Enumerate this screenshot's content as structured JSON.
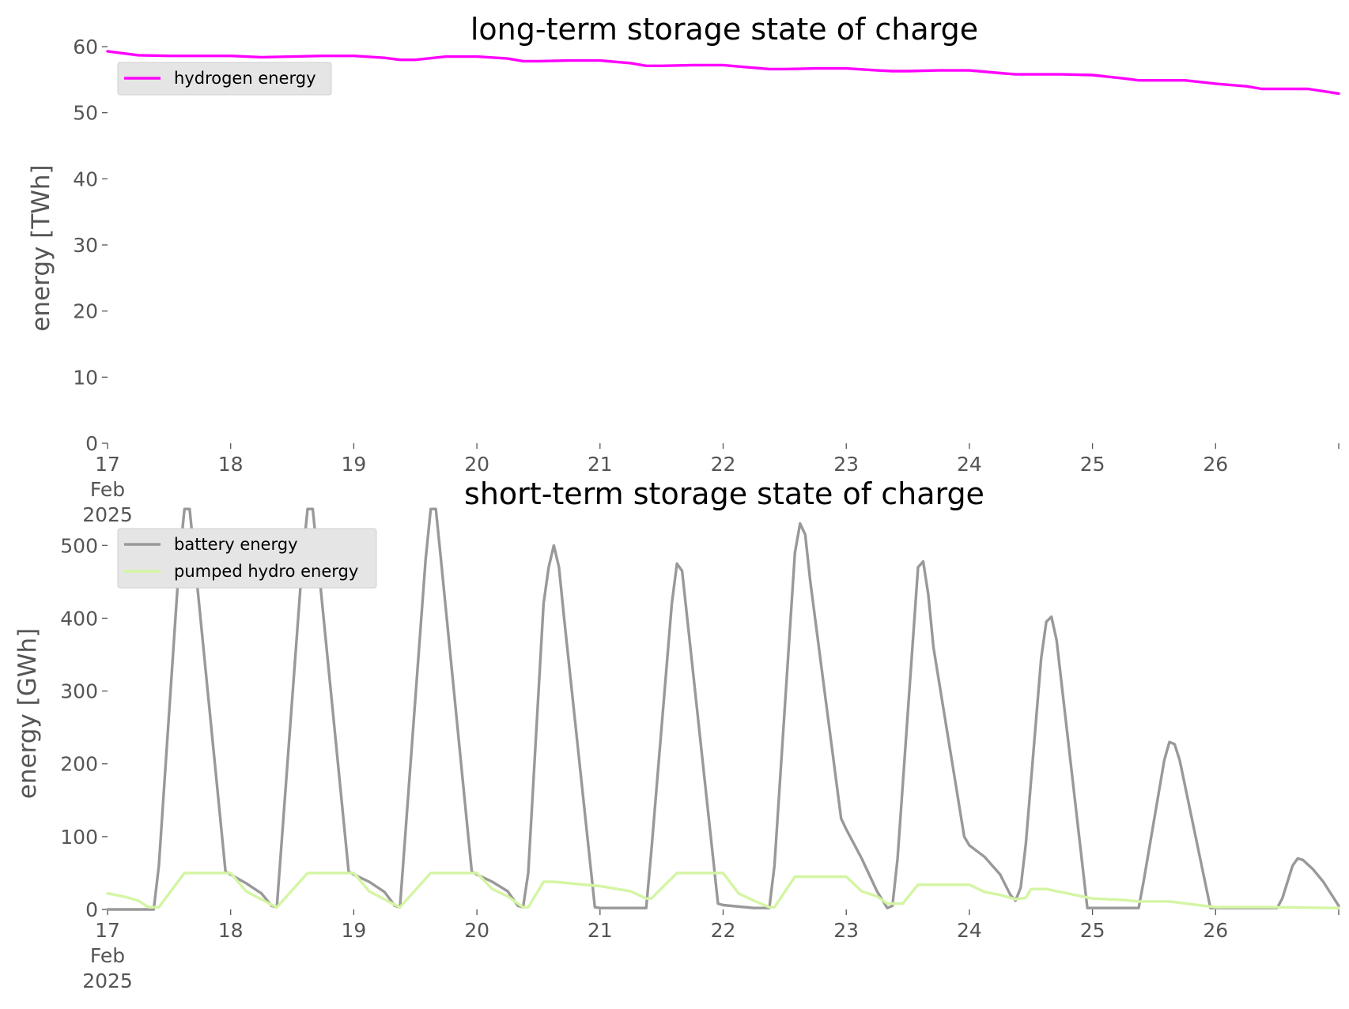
{
  "chart_data": [
    {
      "type": "line",
      "title": "long-term storage state of charge",
      "xlabel": "",
      "ylabel": "energy [TWh]",
      "x_tick_labels": [
        "17\nFeb\n2025",
        "18",
        "19",
        "20",
        "21",
        "22",
        "23",
        "24",
        "25",
        "26"
      ],
      "x_ticks": [
        "2025-02-17",
        "2025-02-18",
        "2025-02-19",
        "2025-02-20",
        "2025-02-21",
        "2025-02-22",
        "2025-02-23",
        "2025-02-24",
        "2025-02-25",
        "2025-02-26",
        "2025-02-27"
      ],
      "xlim": [
        "2025-02-17",
        "2025-02-27"
      ],
      "ylim": [
        0,
        60
      ],
      "y_ticks": [
        0,
        10,
        20,
        30,
        40,
        50,
        60
      ],
      "grid": false,
      "legend_position": "top-left",
      "series": [
        {
          "name": "hydrogen energy",
          "color": "#ff00ff",
          "points": [
            [
              "2025-02-17 00:00",
              59.3
            ],
            [
              "2025-02-17 06:00",
              58.7
            ],
            [
              "2025-02-17 12:00",
              58.6
            ],
            [
              "2025-02-17 18:00",
              58.6
            ],
            [
              "2025-02-18 00:00",
              58.6
            ],
            [
              "2025-02-18 06:00",
              58.4
            ],
            [
              "2025-02-18 12:00",
              58.5
            ],
            [
              "2025-02-18 18:00",
              58.6
            ],
            [
              "2025-02-19 00:00",
              58.6
            ],
            [
              "2025-02-19 06:00",
              58.3
            ],
            [
              "2025-02-19 09:00",
              58.0
            ],
            [
              "2025-02-19 12:00",
              58.0
            ],
            [
              "2025-02-19 18:00",
              58.5
            ],
            [
              "2025-02-20 00:00",
              58.5
            ],
            [
              "2025-02-20 06:00",
              58.2
            ],
            [
              "2025-02-20 09:00",
              57.8
            ],
            [
              "2025-02-20 12:00",
              57.8
            ],
            [
              "2025-02-20 18:00",
              57.9
            ],
            [
              "2025-02-21 00:00",
              57.9
            ],
            [
              "2025-02-21 06:00",
              57.5
            ],
            [
              "2025-02-21 09:00",
              57.1
            ],
            [
              "2025-02-21 12:00",
              57.1
            ],
            [
              "2025-02-21 18:00",
              57.2
            ],
            [
              "2025-02-22 00:00",
              57.2
            ],
            [
              "2025-02-22 06:00",
              56.8
            ],
            [
              "2025-02-22 09:00",
              56.6
            ],
            [
              "2025-02-22 12:00",
              56.6
            ],
            [
              "2025-02-22 18:00",
              56.7
            ],
            [
              "2025-02-23 00:00",
              56.7
            ],
            [
              "2025-02-23 06:00",
              56.4
            ],
            [
              "2025-02-23 09:00",
              56.3
            ],
            [
              "2025-02-23 12:00",
              56.3
            ],
            [
              "2025-02-23 18:00",
              56.4
            ],
            [
              "2025-02-24 00:00",
              56.4
            ],
            [
              "2025-02-24 06:00",
              56.0
            ],
            [
              "2025-02-24 09:00",
              55.8
            ],
            [
              "2025-02-24 12:00",
              55.8
            ],
            [
              "2025-02-24 18:00",
              55.8
            ],
            [
              "2025-02-25 00:00",
              55.7
            ],
            [
              "2025-02-25 06:00",
              55.2
            ],
            [
              "2025-02-25 09:00",
              54.9
            ],
            [
              "2025-02-25 12:00",
              54.9
            ],
            [
              "2025-02-25 18:00",
              54.9
            ],
            [
              "2025-02-26 00:00",
              54.4
            ],
            [
              "2025-02-26 06:00",
              54.0
            ],
            [
              "2025-02-26 09:00",
              53.6
            ],
            [
              "2025-02-26 12:00",
              53.6
            ],
            [
              "2025-02-26 18:00",
              53.6
            ],
            [
              "2025-02-27 00:00",
              52.9
            ]
          ]
        }
      ]
    },
    {
      "type": "line",
      "title": "short-term storage state of charge",
      "xlabel": "",
      "ylabel": "energy [GWh]",
      "x_tick_labels": [
        "17\nFeb\n2025",
        "18",
        "19",
        "20",
        "21",
        "22",
        "23",
        "24",
        "25",
        "26"
      ],
      "x_ticks": [
        "2025-02-17",
        "2025-02-18",
        "2025-02-19",
        "2025-02-20",
        "2025-02-21",
        "2025-02-22",
        "2025-02-23",
        "2025-02-24",
        "2025-02-25",
        "2025-02-26",
        "2025-02-27"
      ],
      "xlim": [
        "2025-02-17",
        "2025-02-27"
      ],
      "ylim": [
        0,
        560
      ],
      "y_ticks": [
        0,
        100,
        200,
        300,
        400,
        500
      ],
      "grid": false,
      "legend_position": "top-left",
      "series": [
        {
          "name": "battery energy",
          "color": "#999999",
          "points": [
            [
              "2025-02-17 00:00",
              0
            ],
            [
              "2025-02-17 09:00",
              0
            ],
            [
              "2025-02-17 10:00",
              60
            ],
            [
              "2025-02-17 14:00",
              480
            ],
            [
              "2025-02-17 15:00",
              550
            ],
            [
              "2025-02-17 16:00",
              550
            ],
            [
              "2025-02-17 17:00",
              480
            ],
            [
              "2025-02-17 23:00",
              52
            ],
            [
              "2025-02-18 00:00",
              48
            ],
            [
              "2025-02-18 03:00",
              36
            ],
            [
              "2025-02-18 06:00",
              22
            ],
            [
              "2025-02-18 08:00",
              5
            ],
            [
              "2025-02-18 09:00",
              3
            ],
            [
              "2025-02-18 14:00",
              480
            ],
            [
              "2025-02-18 15:00",
              550
            ],
            [
              "2025-02-18 16:00",
              550
            ],
            [
              "2025-02-18 17:00",
              480
            ],
            [
              "2025-02-18 23:00",
              52
            ],
            [
              "2025-02-19 00:00",
              48
            ],
            [
              "2025-02-19 03:00",
              38
            ],
            [
              "2025-02-19 06:00",
              24
            ],
            [
              "2025-02-19 08:00",
              5
            ],
            [
              "2025-02-19 09:00",
              3
            ],
            [
              "2025-02-19 14:00",
              480
            ],
            [
              "2025-02-19 15:00",
              550
            ],
            [
              "2025-02-19 16:00",
              550
            ],
            [
              "2025-02-19 17:00",
              480
            ],
            [
              "2025-02-19 23:00",
              52
            ],
            [
              "2025-02-20 00:00",
              48
            ],
            [
              "2025-02-20 03:00",
              38
            ],
            [
              "2025-02-20 06:00",
              25
            ],
            [
              "2025-02-20 08:00",
              5
            ],
            [
              "2025-02-20 09:00",
              3
            ],
            [
              "2025-02-20 10:00",
              50
            ],
            [
              "2025-02-20 13:00",
              420
            ],
            [
              "2025-02-20 14:00",
              470
            ],
            [
              "2025-02-20 15:00",
              500
            ],
            [
              "2025-02-20 16:00",
              470
            ],
            [
              "2025-02-20 17:00",
              400
            ],
            [
              "2025-02-20 23:00",
              3
            ],
            [
              "2025-02-21 00:00",
              2
            ],
            [
              "2025-02-21 09:00",
              2
            ],
            [
              "2025-02-21 10:00",
              80
            ],
            [
              "2025-02-21 14:00",
              420
            ],
            [
              "2025-02-21 15:00",
              475
            ],
            [
              "2025-02-21 16:00",
              465
            ],
            [
              "2025-02-21 17:00",
              400
            ],
            [
              "2025-02-21 23:00",
              8
            ],
            [
              "2025-02-22 00:00",
              6
            ],
            [
              "2025-02-22 06:00",
              2
            ],
            [
              "2025-02-22 09:00",
              2
            ],
            [
              "2025-02-22 10:00",
              60
            ],
            [
              "2025-02-22 14:00",
              490
            ],
            [
              "2025-02-22 15:00",
              530
            ],
            [
              "2025-02-22 16:00",
              515
            ],
            [
              "2025-02-22 17:00",
              450
            ],
            [
              "2025-02-22 23:00",
              125
            ],
            [
              "2025-02-23 00:00",
              110
            ],
            [
              "2025-02-23 03:00",
              70
            ],
            [
              "2025-02-23 06:00",
              25
            ],
            [
              "2025-02-23 08:00",
              2
            ],
            [
              "2025-02-23 09:00",
              5
            ],
            [
              "2025-02-23 10:00",
              70
            ],
            [
              "2025-02-23 14:00",
              470
            ],
            [
              "2025-02-23 15:00",
              478
            ],
            [
              "2025-02-23 16:00",
              432
            ],
            [
              "2025-02-23 17:00",
              360
            ],
            [
              "2025-02-23 23:00",
              100
            ],
            [
              "2025-02-24 00:00",
              88
            ],
            [
              "2025-02-24 03:00",
              72
            ],
            [
              "2025-02-24 06:00",
              48
            ],
            [
              "2025-02-24 08:00",
              20
            ],
            [
              "2025-02-24 09:00",
              12
            ],
            [
              "2025-02-24 10:00",
              30
            ],
            [
              "2025-02-24 11:00",
              90
            ],
            [
              "2025-02-24 14:00",
              345
            ],
            [
              "2025-02-24 15:00",
              395
            ],
            [
              "2025-02-24 16:00",
              402
            ],
            [
              "2025-02-24 17:00",
              370
            ],
            [
              "2025-02-24 23:00",
              2
            ],
            [
              "2025-02-25 00:00",
              2
            ],
            [
              "2025-02-25 09:00",
              2
            ],
            [
              "2025-02-25 10:00",
              40
            ],
            [
              "2025-02-25 14:00",
              205
            ],
            [
              "2025-02-25 15:00",
              230
            ],
            [
              "2025-02-25 16:00",
              227
            ],
            [
              "2025-02-25 17:00",
              205
            ],
            [
              "2025-02-25 23:00",
              2
            ],
            [
              "2025-02-26 00:00",
              2
            ],
            [
              "2025-02-26 12:00",
              2
            ],
            [
              "2025-02-26 13:00",
              15
            ],
            [
              "2025-02-26 15:00",
              60
            ],
            [
              "2025-02-26 16:00",
              70
            ],
            [
              "2025-02-26 17:00",
              68
            ],
            [
              "2025-02-26 19:00",
              55
            ],
            [
              "2025-02-26 21:00",
              38
            ],
            [
              "2025-02-27 00:00",
              5
            ]
          ]
        },
        {
          "name": "pumped hydro energy",
          "color": "#d4f5a3",
          "points": [
            [
              "2025-02-17 00:00",
              22
            ],
            [
              "2025-02-17 03:00",
              18
            ],
            [
              "2025-02-17 06:00",
              12
            ],
            [
              "2025-02-17 08:00",
              3
            ],
            [
              "2025-02-17 10:00",
              3
            ],
            [
              "2025-02-17 15:00",
              50
            ],
            [
              "2025-02-18 00:00",
              50
            ],
            [
              "2025-02-18 03:00",
              25
            ],
            [
              "2025-02-18 07:00",
              10
            ],
            [
              "2025-02-18 09:00",
              3
            ],
            [
              "2025-02-18 15:00",
              50
            ],
            [
              "2025-02-19 00:00",
              50
            ],
            [
              "2025-02-19 03:00",
              25
            ],
            [
              "2025-02-19 07:00",
              10
            ],
            [
              "2025-02-19 09:00",
              3
            ],
            [
              "2025-02-19 15:00",
              50
            ],
            [
              "2025-02-20 00:00",
              50
            ],
            [
              "2025-02-20 03:00",
              28
            ],
            [
              "2025-02-20 06:00",
              18
            ],
            [
              "2025-02-20 09:00",
              3
            ],
            [
              "2025-02-20 10:00",
              3
            ],
            [
              "2025-02-20 13:00",
              38
            ],
            [
              "2025-02-20 15:00",
              38
            ],
            [
              "2025-02-21 00:00",
              32
            ],
            [
              "2025-02-21 06:00",
              25
            ],
            [
              "2025-02-21 09:00",
              15
            ],
            [
              "2025-02-21 10:00",
              15
            ],
            [
              "2025-02-21 15:00",
              50
            ],
            [
              "2025-02-22 00:00",
              50
            ],
            [
              "2025-02-22 03:00",
              22
            ],
            [
              "2025-02-22 06:00",
              12
            ],
            [
              "2025-02-22 09:00",
              3
            ],
            [
              "2025-02-22 10:00",
              3
            ],
            [
              "2025-02-22 14:00",
              45
            ],
            [
              "2025-02-23 00:00",
              45
            ],
            [
              "2025-02-23 03:00",
              25
            ],
            [
              "2025-02-23 06:00",
              18
            ],
            [
              "2025-02-23 08:00",
              8
            ],
            [
              "2025-02-23 11:00",
              8
            ],
            [
              "2025-02-23 14:00",
              34
            ],
            [
              "2025-02-24 00:00",
              34
            ],
            [
              "2025-02-24 03:00",
              24
            ],
            [
              "2025-02-24 06:00",
              20
            ],
            [
              "2025-02-24 09:00",
              14
            ],
            [
              "2025-02-24 11:00",
              16
            ],
            [
              "2025-02-24 12:00",
              28
            ],
            [
              "2025-02-24 15:00",
              28
            ],
            [
              "2025-02-25 00:00",
              15
            ],
            [
              "2025-02-25 06:00",
              13
            ],
            [
              "2025-02-25 09:00",
              11
            ],
            [
              "2025-02-25 15:00",
              11
            ],
            [
              "2025-02-26 00:00",
              3
            ],
            [
              "2025-02-26 06:00",
              3
            ],
            [
              "2025-02-26 12:00",
              3
            ],
            [
              "2025-02-27 00:00",
              2
            ]
          ]
        }
      ]
    }
  ]
}
